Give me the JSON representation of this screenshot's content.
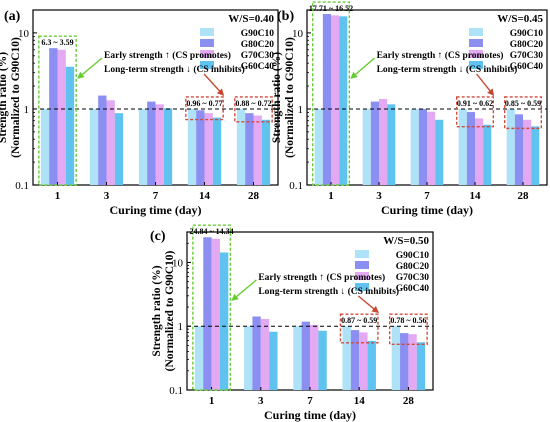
{
  "colors": {
    "G90C10": "#aee2f6",
    "G80C20": "#8b8ff2",
    "G70C30": "#e3a9f3",
    "G60C40": "#5fc2ef",
    "highlight_green": "#66cc33",
    "highlight_red": "#d14b3a",
    "arrow_green": "#66cc33",
    "arrow_red": "#c8462f"
  },
  "chart_data": [
    {
      "type": "bar",
      "panel_label": "(a)",
      "title": "",
      "condition": "W/S=0.40",
      "xlabel": "Curing time (day)",
      "ylabel": "Strength ratio (%)",
      "ylabel2": "(Normalized to G90C10)",
      "y_scale": "log",
      "ylim": [
        0.1,
        20
      ],
      "yticks": [
        "0.1",
        "1",
        "10"
      ],
      "categories": [
        "1",
        "3",
        "7",
        "14",
        "28"
      ],
      "reference_line": 1,
      "legend_position": "top-right",
      "series": [
        {
          "name": "G90C10",
          "values": [
            1,
            1,
            1,
            1,
            1
          ]
        },
        {
          "name": "G80C20",
          "values": [
            6.3,
            1.5,
            1.25,
            0.96,
            0.88
          ]
        },
        {
          "name": "G70C30",
          "values": [
            6.0,
            1.3,
            1.15,
            0.88,
            0.82
          ]
        },
        {
          "name": "G60C40",
          "values": [
            3.59,
            0.88,
            1.02,
            0.77,
            0.72
          ]
        }
      ],
      "range_labels": [
        {
          "category": "1",
          "text": "6.3 ~ 3.59",
          "box": "green"
        },
        {
          "category": "14",
          "text": "0.96 ~ 0.77",
          "box": "red"
        },
        {
          "category": "28",
          "text": "0.88 ~ 0.72",
          "box": "red"
        }
      ],
      "annotations": [
        "Early strength ↑ (CS promotes)",
        "Long-term strength ↓ (CS inhibits)"
      ]
    },
    {
      "type": "bar",
      "panel_label": "(b)",
      "title": "",
      "condition": "W/S=0.45",
      "xlabel": "Curing time (day)",
      "ylabel": "Strength ratio (%)",
      "ylabel2": "(Normalized to G90C10)",
      "y_scale": "log",
      "ylim": [
        0.1,
        20
      ],
      "yticks": [
        "0.1",
        "1",
        "10"
      ],
      "categories": [
        "1",
        "3",
        "7",
        "14",
        "28"
      ],
      "reference_line": 1,
      "legend_position": "top-right",
      "series": [
        {
          "name": "G90C10",
          "values": [
            1,
            1,
            1,
            1,
            1
          ]
        },
        {
          "name": "G80C20",
          "values": [
            17.71,
            1.25,
            1.0,
            0.91,
            0.85
          ]
        },
        {
          "name": "G70C30",
          "values": [
            17.0,
            1.35,
            0.92,
            0.75,
            0.72
          ]
        },
        {
          "name": "G60C40",
          "values": [
            16.52,
            1.15,
            0.72,
            0.62,
            0.59
          ]
        }
      ],
      "range_labels": [
        {
          "category": "1",
          "text": "17.71 ~ 16.52",
          "box": "green"
        },
        {
          "category": "14",
          "text": "0.91 ~ 0.62",
          "box": "red"
        },
        {
          "category": "28",
          "text": "0.85 ~ 0.59",
          "box": "red"
        }
      ],
      "annotations": [
        "Early strength ↑ (CS promotes)",
        "Long-term strength ↓ (CS inhibits)"
      ]
    },
    {
      "type": "bar",
      "panel_label": "(c)",
      "title": "",
      "condition": "W/S=0.50",
      "xlabel": "Curing time (day)",
      "ylabel": "Strength ratio (%)",
      "ylabel2": "(Normalized to G90C10)",
      "y_scale": "log",
      "ylim": [
        0.1,
        30
      ],
      "yticks": [
        "0.1",
        "1",
        "10"
      ],
      "categories": [
        "1",
        "3",
        "7",
        "14",
        "28"
      ],
      "reference_line": 1,
      "legend_position": "top-right",
      "series": [
        {
          "name": "G90C10",
          "values": [
            1,
            1,
            1,
            1,
            1
          ]
        },
        {
          "name": "G80C20",
          "values": [
            24.84,
            1.42,
            1.18,
            0.87,
            0.78
          ]
        },
        {
          "name": "G70C30",
          "values": [
            23.5,
            1.3,
            1.05,
            0.8,
            0.75
          ]
        },
        {
          "name": "G60C40",
          "values": [
            14.34,
            0.82,
            0.85,
            0.59,
            0.56
          ]
        }
      ],
      "range_labels": [
        {
          "category": "1",
          "text": "24.84 ~ 14.34",
          "box": "green"
        },
        {
          "category": "14",
          "text": "0.87 ~ 0.59",
          "box": "red"
        },
        {
          "category": "28",
          "text": "0.78 ~ 0.56",
          "box": "red"
        }
      ],
      "annotations": [
        "Early strength ↑ (CS promotes)",
        "Long-term strength ↓ (CS inhibits)"
      ]
    }
  ]
}
